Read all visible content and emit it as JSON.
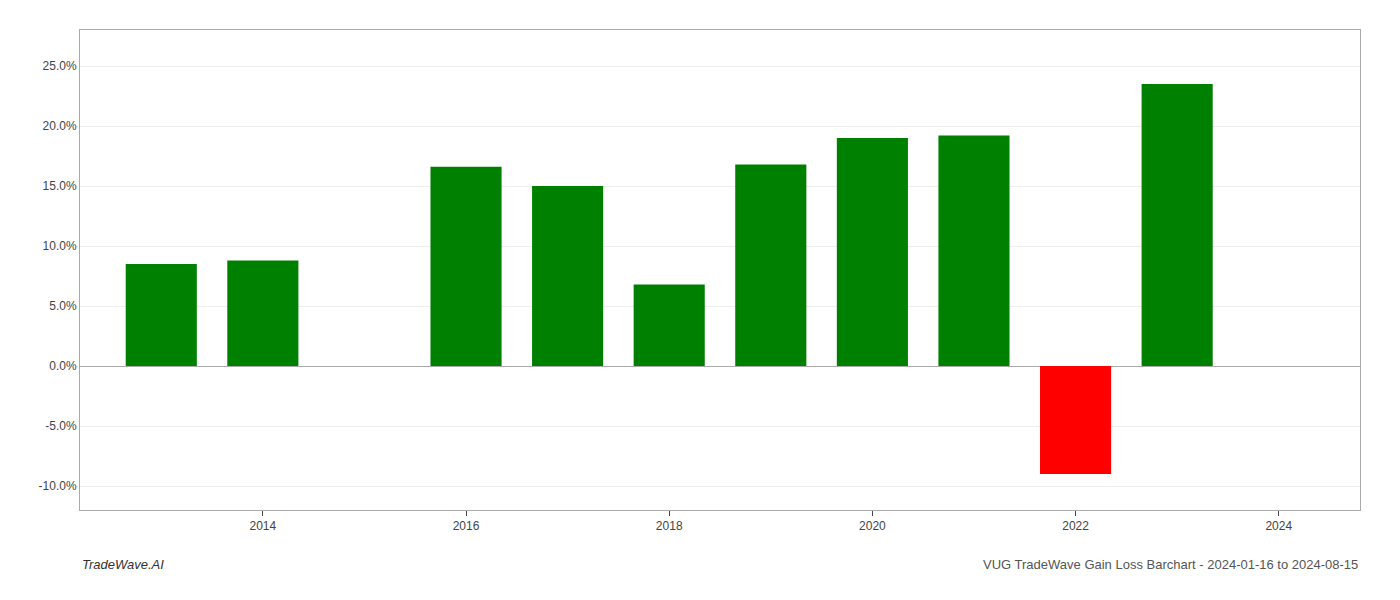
{
  "chart_data": {
    "type": "bar",
    "x": [
      2013,
      2014,
      2016,
      2017,
      2018,
      2019,
      2020,
      2021,
      2022,
      2023
    ],
    "values": [
      0.085,
      0.088,
      0.166,
      0.15,
      0.068,
      0.168,
      0.19,
      0.192,
      -0.09,
      0.235
    ],
    "colors": [
      "#008000",
      "#008000",
      "#008000",
      "#008000",
      "#008000",
      "#008000",
      "#008000",
      "#008000",
      "#ff0000",
      "#008000"
    ],
    "xlim": [
      2012.2,
      2024.8
    ],
    "xticks": [
      2014,
      2016,
      2018,
      2020,
      2022,
      2024
    ],
    "ylim": [
      -0.12,
      0.28
    ],
    "yticks": [
      {
        "value": -0.1,
        "label": "-10.0%"
      },
      {
        "value": -0.05,
        "label": "-5.0%"
      },
      {
        "value": 0.0,
        "label": "0.0%"
      },
      {
        "value": 0.05,
        "label": "5.0%"
      },
      {
        "value": 0.1,
        "label": "10.0%"
      },
      {
        "value": 0.15,
        "label": "15.0%"
      },
      {
        "value": 0.2,
        "label": "20.0%"
      },
      {
        "value": 0.25,
        "label": "25.0%"
      }
    ],
    "grid": true,
    "annotations": [
      "TradeWave.AI",
      "VUG TradeWave Gain Loss Barchart - 2024-01-16 to 2024-08-15"
    ]
  }
}
